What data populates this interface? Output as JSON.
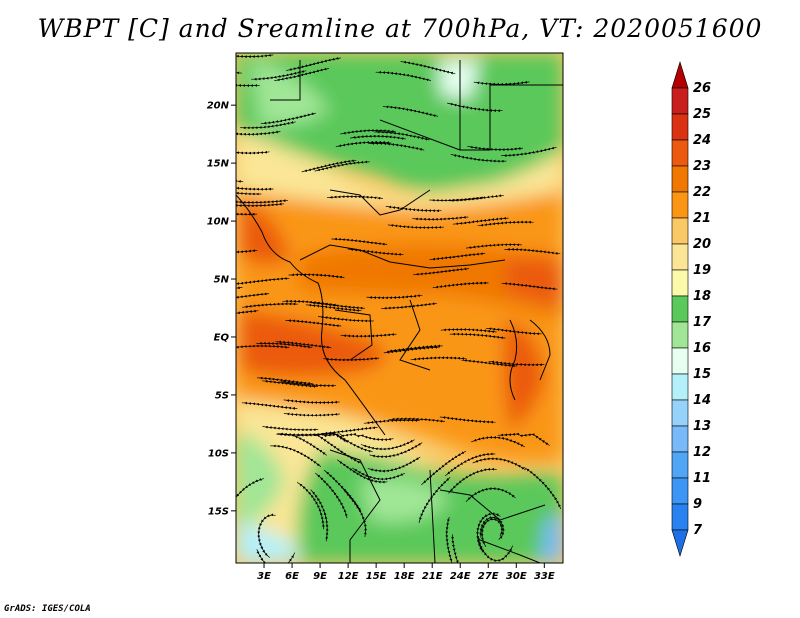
{
  "title": "WBPT [C] and Sreamline at 700hPa, VT: 2020051600",
  "credit": "GrADS: IGES/COLA",
  "map": {
    "lat_labels": [
      "20N",
      "15N",
      "10N",
      "5N",
      "EQ",
      "5S",
      "10S",
      "15S"
    ],
    "lat_values": [
      20,
      15,
      10,
      5,
      0,
      -5,
      -10,
      -15
    ],
    "lon_labels": [
      "3E",
      "6E",
      "9E",
      "12E",
      "15E",
      "18E",
      "21E",
      "24E",
      "27E",
      "30E",
      "33E"
    ],
    "lon_values": [
      3,
      6,
      9,
      12,
      15,
      18,
      21,
      24,
      27,
      30,
      33
    ],
    "lat_range": [
      -19.5,
      24.5
    ],
    "lon_range": [
      0,
      35
    ]
  },
  "colorbar": {
    "labels": [
      "7",
      "9",
      "11",
      "12",
      "13",
      "14",
      "15",
      "16",
      "17",
      "18",
      "19",
      "20",
      "21",
      "22",
      "23",
      "24",
      "25",
      "26"
    ],
    "colors": [
      "#1e6ee6",
      "#2882f0",
      "#3c96f5",
      "#50a5f5",
      "#78b9fa",
      "#96d2fa",
      "#b4f0fa",
      "#e6fff0",
      "#a0e696",
      "#5ac85a",
      "#fafaaa",
      "#fae696",
      "#fac864",
      "#fa9614",
      "#f07800",
      "#eb5a0f",
      "#dc3214",
      "#c81e1e",
      "#b40000"
    ]
  }
}
